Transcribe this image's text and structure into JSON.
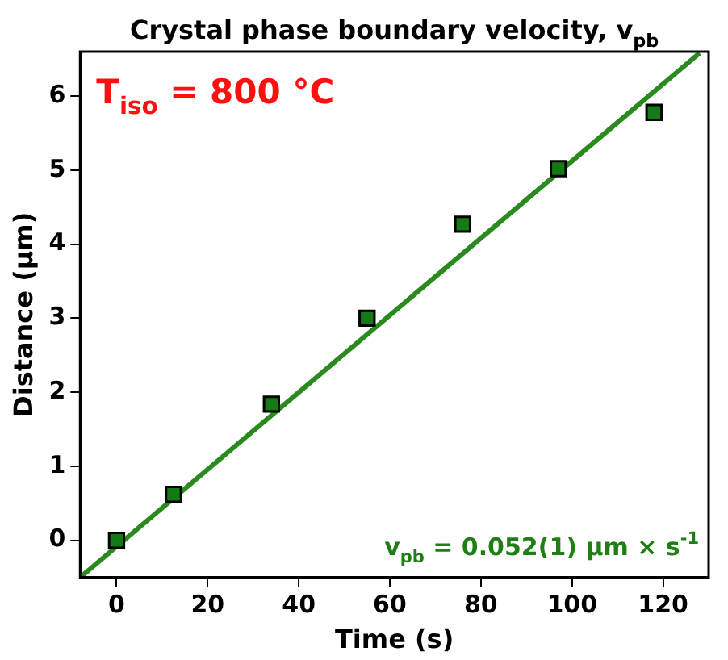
{
  "chart_data": {
    "type": "scatter",
    "title": "Crystal phase boundary velocity, v$_{pb}$",
    "xlabel": "Time (s)",
    "ylabel": "Distance (µm)",
    "xlim": [
      -8,
      130
    ],
    "xticks": [
      0,
      20,
      40,
      60,
      80,
      100,
      120
    ],
    "ylim": [
      -0.5,
      6.6
    ],
    "yticks": [
      0,
      1,
      2,
      3,
      4,
      5,
      6
    ],
    "grid": false,
    "legend": false,
    "marker": "square",
    "series": [
      {
        "color": "#157a15",
        "x": [
          0,
          12.5,
          34,
          55,
          76,
          97,
          118
        ],
        "values": [
          0,
          0.62,
          1.84,
          3.0,
          4.27,
          5.02,
          5.78
        ]
      },
      {
        "type": "line",
        "color": "#2a8a1e",
        "x": [
          -8,
          128
        ],
        "values": [
          -0.5,
          6.58
        ],
        "marker": "none",
        "line_style": "solid"
      }
    ],
    "annotations": [
      "T$_{iso}$ = 800 °C",
      "v$_{pb}$ = 0.052(1) µm × s$^{-1}$"
    ]
  }
}
